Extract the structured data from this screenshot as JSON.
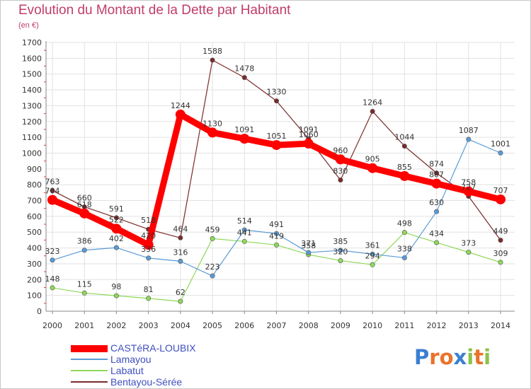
{
  "chart_data": {
    "type": "line",
    "title": "Evolution du Montant de la Dette par Habitant",
    "subtitle": "(en €)",
    "x": [
      "2000",
      "2001",
      "2002",
      "2003",
      "2004",
      "2005",
      "2006",
      "2007",
      "2008",
      "2009",
      "2010",
      "2011",
      "2012",
      "2013",
      "2014"
    ],
    "ylim": [
      0,
      1700
    ],
    "yticks": [
      0,
      100,
      200,
      300,
      400,
      500,
      600,
      700,
      800,
      900,
      1000,
      1100,
      1200,
      1300,
      1400,
      1500,
      1600,
      1700
    ],
    "grid": true,
    "legend_position": "bottom-left",
    "series": [
      {
        "name": "CASTéRA-LOUBIX",
        "color": "#ff0000",
        "values": [
          704,
          618,
          522,
          420,
          1244,
          1130,
          1091,
          1051,
          1060,
          960,
          905,
          855,
          807,
          758,
          707
        ]
      },
      {
        "name": "Lamayou",
        "color": "#5b9bd5",
        "values": [
          323,
          386,
          402,
          336,
          316,
          223,
          514,
          491,
          371,
          385,
          361,
          338,
          630,
          1087,
          1001
        ]
      },
      {
        "name": "Labatut",
        "color": "#8ed85a",
        "values": [
          148,
          115,
          98,
          81,
          62,
          459,
          441,
          419,
          358,
          320,
          294,
          498,
          434,
          373,
          309
        ]
      },
      {
        "name": "Bentayou-Sérée",
        "color": "#7a2a2a",
        "values": [
          763,
          660,
          591,
          518,
          464,
          1588,
          1478,
          1330,
          1091,
          830,
          1264,
          1044,
          874,
          727,
          449
        ]
      }
    ]
  },
  "legend": {
    "items": [
      "CASTéRA-LOUBIX",
      "Lamayou",
      "Labatut",
      "Bentayou-Sérée"
    ]
  },
  "logo": {
    "letters": [
      "P",
      "r",
      "o",
      "x",
      "i",
      "t",
      "i"
    ],
    "colors": [
      "#3a7fd1",
      "#e8732a",
      "#e8732a",
      "#3a7fd1",
      "#8bc34a",
      "#e8732a",
      "#8bc34a"
    ]
  }
}
